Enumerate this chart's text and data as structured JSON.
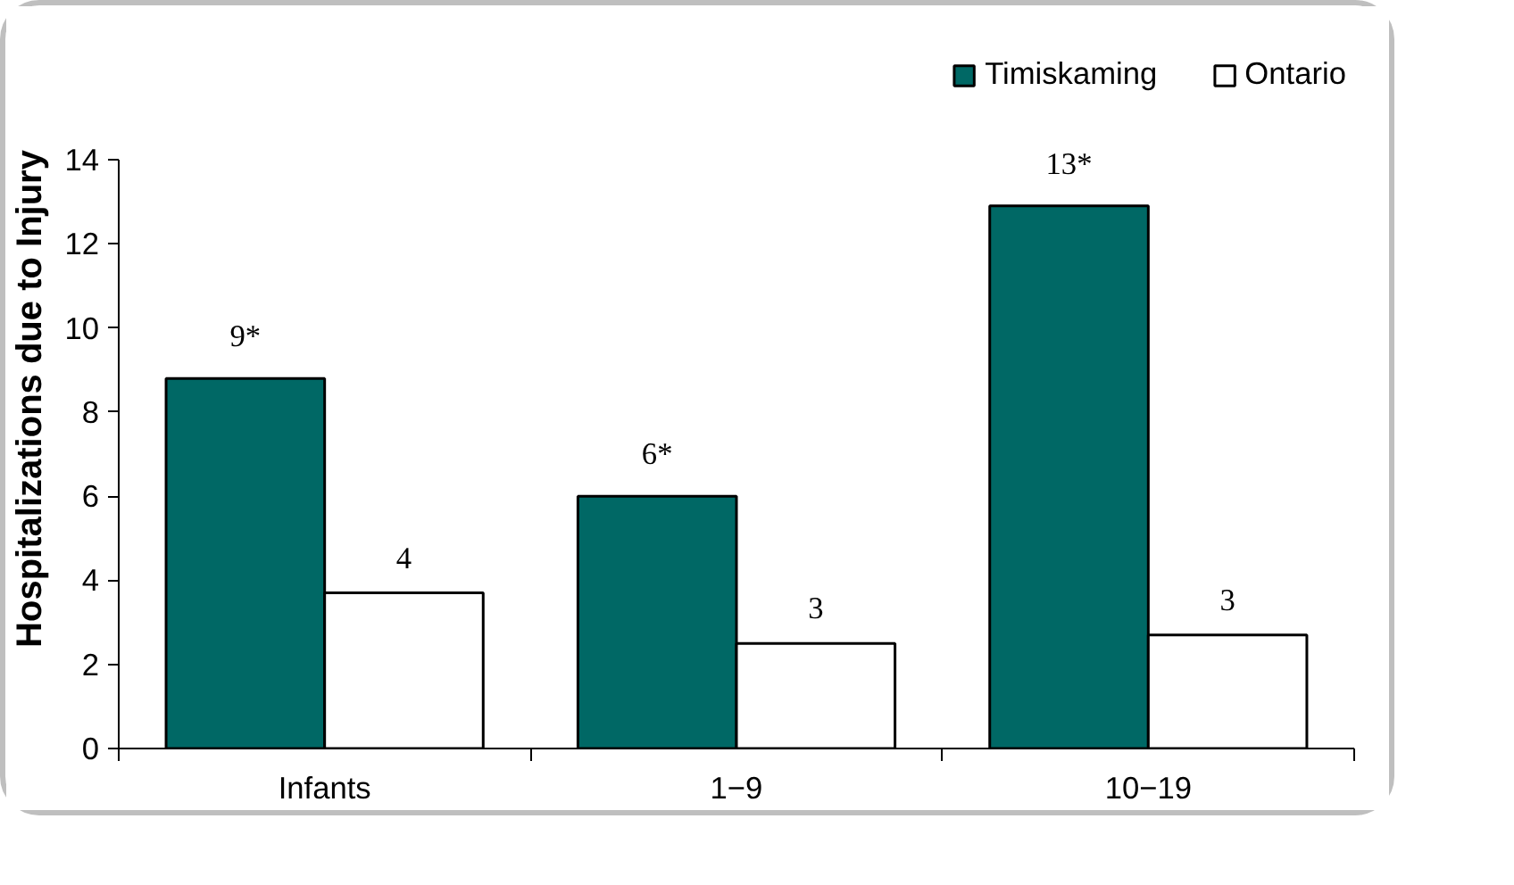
{
  "chart_data": {
    "type": "bar",
    "ylabel": "Hospitalizations due to Injury",
    "categories": [
      "Infants",
      "1−9",
      "10−19"
    ],
    "series": [
      {
        "name": "Timiskaming",
        "color": "#006865",
        "values": [
          8.8,
          6.0,
          12.9
        ],
        "value_labels": [
          "9*",
          "6*",
          "13*"
        ]
      },
      {
        "name": "Ontario",
        "color": "#ffffff",
        "values": [
          3.7,
          2.5,
          2.7
        ],
        "value_labels": [
          "4",
          "3",
          "3"
        ]
      }
    ],
    "ylim": [
      0,
      14
    ],
    "yticks": [
      0,
      2,
      4,
      6,
      8,
      10,
      12,
      14
    ],
    "grid": false,
    "legend": "top right"
  }
}
